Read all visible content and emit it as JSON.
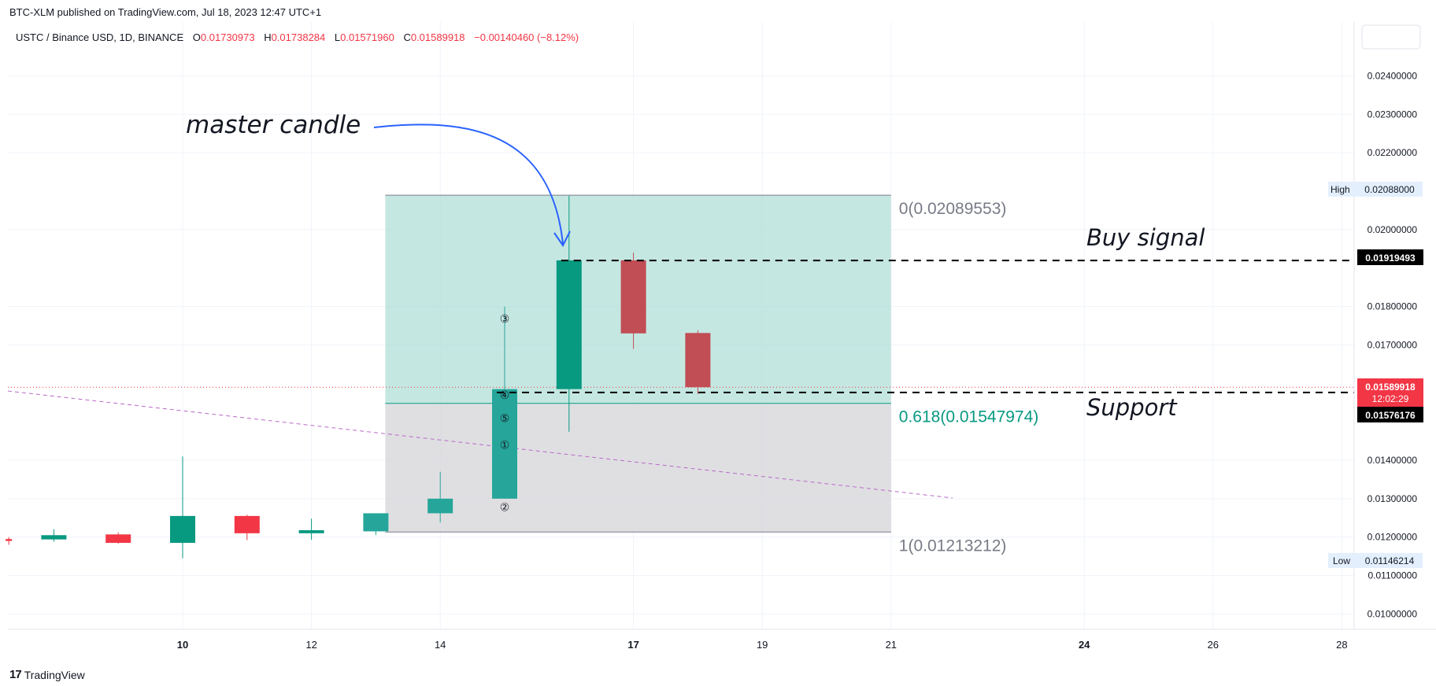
{
  "published": "BTC-XLM published on TradingView.com, Jul 18, 2023 12:47 UTC+1",
  "brand": "TradingView",
  "header": {
    "symbol": "USTC / Binance USD, 1D, BINANCE",
    "o_label": "O",
    "o_value": "0.01730973",
    "h_label": "H",
    "h_value": "0.01738284",
    "l_label": "L",
    "l_value": "0.01571960",
    "c_label": "C",
    "c_value": "0.01589918",
    "change": "−0.00140460 (−8.12%)"
  },
  "colors": {
    "up": "#089981",
    "down": "#f23645",
    "up_box": "#b2dfd7",
    "gray_box": "#d4d4d8",
    "arrow": "#2962ff",
    "pitch": "#ba68c8"
  },
  "chart_data": {
    "type": "candlestick",
    "x_ticks": [
      "10",
      "12",
      "14",
      "17",
      "19",
      "21",
      "24",
      "26",
      "28"
    ],
    "x_tick_days": [
      10,
      12,
      14,
      17,
      19,
      21,
      24,
      26,
      28
    ],
    "y_ticks": [
      "0.02400000",
      "0.02300000",
      "0.02200000",
      "0.02000000",
      "0.01800000",
      "0.01700000",
      "0.01400000",
      "0.01300000",
      "0.01200000",
      "0.01100000",
      "0.01000000"
    ],
    "ylim": [
      0.0096,
      0.0254
    ],
    "candles": [
      {
        "day": 7.3,
        "o": 0.01195,
        "h": 0.012,
        "l": 0.0118,
        "c": 0.0119
      },
      {
        "day": 8,
        "o": 0.01194,
        "h": 0.0122,
        "l": 0.01188,
        "c": 0.01205
      },
      {
        "day": 9,
        "o": 0.01207,
        "h": 0.01212,
        "l": 0.01183,
        "c": 0.01185
      },
      {
        "day": 10,
        "o": 0.01185,
        "h": 0.0141,
        "l": 0.01145,
        "c": 0.01255
      },
      {
        "day": 11,
        "o": 0.01255,
        "h": 0.01258,
        "l": 0.01192,
        "c": 0.0121
      },
      {
        "day": 12,
        "o": 0.0121,
        "h": 0.01248,
        "l": 0.01193,
        "c": 0.01218
      },
      {
        "day": 13,
        "o": 0.01215,
        "h": 0.01262,
        "l": 0.01205,
        "c": 0.01262
      },
      {
        "day": 14,
        "o": 0.01262,
        "h": 0.0137,
        "l": 0.01238,
        "c": 0.013
      },
      {
        "day": 15,
        "o": 0.013,
        "h": 0.018,
        "l": 0.013,
        "c": 0.01585
      },
      {
        "day": 16,
        "o": 0.01585,
        "h": 0.02088,
        "l": 0.01474,
        "c": 0.0192
      },
      {
        "day": 17,
        "o": 0.0192,
        "h": 0.0194,
        "l": 0.0169,
        "c": 0.0173
      },
      {
        "day": 18,
        "o": 0.01731,
        "h": 0.01738,
        "l": 0.01572,
        "c": 0.0159
      }
    ],
    "fib": {
      "levels": [
        {
          "label": "0(0.02089553)",
          "value": 0.02089553
        },
        {
          "label": "0.618(0.01547974)",
          "value": 0.01547974
        },
        {
          "label": "1(0.01213212)",
          "value": 0.01213212
        }
      ],
      "day_start": 13,
      "day_end": 21
    },
    "markers": [
      "③",
      "④",
      "⑤",
      "①",
      "②"
    ],
    "annotations": {
      "master_candle": "master candle",
      "buy_signal": "Buy signal",
      "support": "Support"
    },
    "lines": {
      "buy": 0.01919493,
      "support": 0.01576176
    },
    "price_labels": {
      "high_label": "High",
      "high_value": "0.02088000",
      "low_label": "Low",
      "low_value": "0.01146214",
      "buy_value": "0.01919493",
      "last_value": "0.01589918",
      "countdown": "12:02:29",
      "support_value": "0.01576176"
    }
  }
}
